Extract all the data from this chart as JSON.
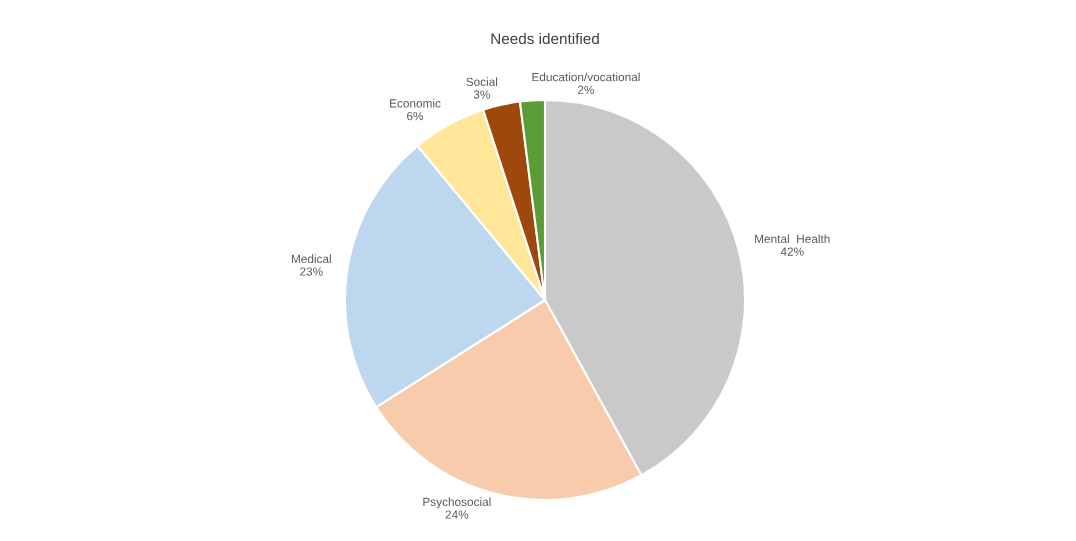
{
  "chart_data": {
    "type": "pie",
    "title": "Needs identified",
    "categories": [
      "Mental  Health",
      "Psychosocial",
      "Medical",
      "Economic",
      "Social",
      "Education/vocational"
    ],
    "values": [
      42,
      24,
      23,
      6,
      3,
      2
    ],
    "value_labels": [
      "42%",
      "24%",
      "23%",
      "6%",
      "3%",
      "2%"
    ],
    "colors": [
      "#c9c9c9",
      "#f8cbad",
      "#bdd7ee",
      "#ffe699",
      "#9e480e",
      "#5b9b38"
    ],
    "legend": false
  }
}
